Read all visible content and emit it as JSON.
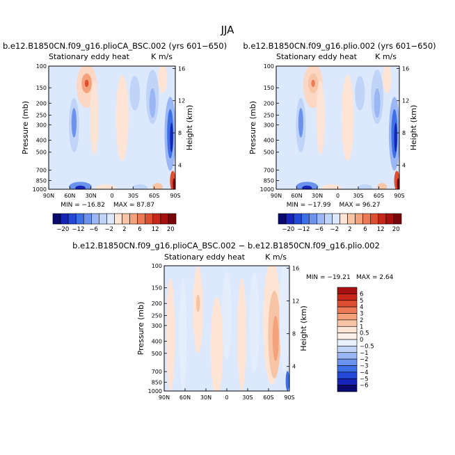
{
  "figure": {
    "season": "JJA"
  },
  "chart_data": [
    {
      "type": "heatmap",
      "title": "b.e12.B1850CN.f09_g16.plioCA_BSC.002 (yrs 601−650)",
      "left_label": "Stationary eddy heat",
      "right_label": "K m/s",
      "ylabel": "Pressure (mb)",
      "y2label": "Height (km)",
      "x_ticks": [
        "90N",
        "60N",
        "30N",
        "0",
        "30S",
        "60S",
        "90S"
      ],
      "y_ticks": [
        "100",
        "150",
        "200",
        "250",
        "300",
        "400",
        "500",
        "700",
        "850",
        "1000"
      ],
      "y2_ticks": [
        "16",
        "12",
        "8",
        "4"
      ],
      "min_text": "MIN = −16.82",
      "max_text": "MAX =  87.87",
      "colorbar_labels": [
        "−20",
        "−12",
        "−6",
        "−2",
        "2",
        "6",
        "12",
        "20"
      ],
      "colorbar_colors": [
        "#0a0a6e",
        "#1624b8",
        "#2449d8",
        "#3d6fe6",
        "#6b93ee",
        "#9ab6f4",
        "#c0d4f8",
        "#dce8fb",
        "#fde4d4",
        "#f8c4a6",
        "#f4a27c",
        "#ec7a56",
        "#de4e30",
        "#c8281a",
        "#a6100e",
        "#78050a"
      ],
      "shapes": [
        {
          "cx": 0.3,
          "cy": 0.16,
          "rx": 0.08,
          "ry": 0.18,
          "c": "#fbd7c4"
        },
        {
          "cx": 0.3,
          "cy": 0.14,
          "rx": 0.04,
          "ry": 0.08,
          "c": "#f4a27c"
        },
        {
          "cx": 0.3,
          "cy": 0.14,
          "rx": 0.015,
          "ry": 0.03,
          "c": "#de4e30"
        },
        {
          "cx": 0.36,
          "cy": 0.42,
          "rx": 0.035,
          "ry": 0.3,
          "c": "#fbe3d6"
        },
        {
          "cx": 0.2,
          "cy": 0.48,
          "rx": 0.04,
          "ry": 0.22,
          "c": "#c0d4f8"
        },
        {
          "cx": 0.2,
          "cy": 0.46,
          "rx": 0.02,
          "ry": 0.12,
          "c": "#6b93ee"
        },
        {
          "cx": 0.12,
          "cy": 0.55,
          "rx": 0.025,
          "ry": 0.3,
          "c": "#dce8fb"
        },
        {
          "cx": 0.58,
          "cy": 0.42,
          "rx": 0.05,
          "ry": 0.35,
          "c": "#fde4d4"
        },
        {
          "cx": 0.68,
          "cy": 0.22,
          "rx": 0.04,
          "ry": 0.14,
          "c": "#c0d4f8"
        },
        {
          "cx": 0.82,
          "cy": 0.25,
          "rx": 0.05,
          "ry": 0.22,
          "c": "#c0d4f8"
        },
        {
          "cx": 0.82,
          "cy": 0.3,
          "rx": 0.025,
          "ry": 0.12,
          "c": "#9ab6f4"
        },
        {
          "cx": 0.9,
          "cy": 0.1,
          "rx": 0.035,
          "ry": 0.12,
          "c": "#fde4d4"
        },
        {
          "cx": 0.96,
          "cy": 0.55,
          "rx": 0.045,
          "ry": 0.3,
          "c": "#9ab6f4"
        },
        {
          "cx": 0.96,
          "cy": 0.55,
          "rx": 0.025,
          "ry": 0.2,
          "c": "#3d6fe6"
        },
        {
          "cx": 0.97,
          "cy": 0.58,
          "rx": 0.012,
          "ry": 0.12,
          "c": "#1624b8"
        },
        {
          "cx": 0.98,
          "cy": 0.93,
          "rx": 0.022,
          "ry": 0.08,
          "c": "#de4e30"
        },
        {
          "cx": 0.99,
          "cy": 0.96,
          "rx": 0.01,
          "ry": 0.05,
          "c": "#78050a"
        },
        {
          "cx": 0.25,
          "cy": 0.98,
          "rx": 0.09,
          "ry": 0.04,
          "c": "#6b93ee"
        },
        {
          "cx": 0.25,
          "cy": 0.99,
          "rx": 0.04,
          "ry": 0.02,
          "c": "#1624b8"
        },
        {
          "cx": 0.45,
          "cy": 0.99,
          "rx": 0.08,
          "ry": 0.03,
          "c": "#fde4d4"
        },
        {
          "cx": 0.72,
          "cy": 0.99,
          "rx": 0.06,
          "ry": 0.03,
          "c": "#c0d4f8"
        },
        {
          "cx": 0.86,
          "cy": 0.98,
          "rx": 0.04,
          "ry": 0.03,
          "c": "#f8c4a6"
        }
      ]
    },
    {
      "type": "heatmap",
      "title": "b.e12.B1850CN.f09_g16.plio.002 (yrs 601−650)",
      "left_label": "Stationary eddy heat",
      "right_label": "K m/s",
      "ylabel": "Pressure (mb)",
      "y2label": "Height (km)",
      "x_ticks": [
        "90N",
        "60N",
        "30N",
        "0",
        "30S",
        "60S",
        "90S"
      ],
      "y_ticks": [
        "100",
        "150",
        "200",
        "250",
        "300",
        "400",
        "500",
        "700",
        "850",
        "1000"
      ],
      "y2_ticks": [
        "16",
        "12",
        "8",
        "4"
      ],
      "min_text": "MIN = −17.99",
      "max_text": "MAX =  96.27",
      "colorbar_labels": [
        "−20",
        "−12",
        "−6",
        "−2",
        "2",
        "6",
        "12",
        "20"
      ],
      "colorbar_colors": [
        "#0a0a6e",
        "#1624b8",
        "#2449d8",
        "#3d6fe6",
        "#6b93ee",
        "#9ab6f4",
        "#c0d4f8",
        "#dce8fb",
        "#fde4d4",
        "#f8c4a6",
        "#f4a27c",
        "#ec7a56",
        "#de4e30",
        "#c8281a",
        "#a6100e",
        "#78050a"
      ],
      "shapes": [
        {
          "cx": 0.3,
          "cy": 0.16,
          "rx": 0.08,
          "ry": 0.18,
          "c": "#fbd7c4"
        },
        {
          "cx": 0.3,
          "cy": 0.14,
          "rx": 0.04,
          "ry": 0.08,
          "c": "#f8c4a6"
        },
        {
          "cx": 0.3,
          "cy": 0.14,
          "rx": 0.015,
          "ry": 0.03,
          "c": "#ec7a56"
        },
        {
          "cx": 0.36,
          "cy": 0.42,
          "rx": 0.035,
          "ry": 0.3,
          "c": "#fbe3d6"
        },
        {
          "cx": 0.2,
          "cy": 0.48,
          "rx": 0.04,
          "ry": 0.22,
          "c": "#c0d4f8"
        },
        {
          "cx": 0.2,
          "cy": 0.46,
          "rx": 0.02,
          "ry": 0.12,
          "c": "#6b93ee"
        },
        {
          "cx": 0.12,
          "cy": 0.55,
          "rx": 0.025,
          "ry": 0.3,
          "c": "#dce8fb"
        },
        {
          "cx": 0.58,
          "cy": 0.42,
          "rx": 0.05,
          "ry": 0.35,
          "c": "#fde4d4"
        },
        {
          "cx": 0.68,
          "cy": 0.22,
          "rx": 0.04,
          "ry": 0.14,
          "c": "#c0d4f8"
        },
        {
          "cx": 0.82,
          "cy": 0.25,
          "rx": 0.05,
          "ry": 0.22,
          "c": "#c0d4f8"
        },
        {
          "cx": 0.82,
          "cy": 0.3,
          "rx": 0.025,
          "ry": 0.12,
          "c": "#9ab6f4"
        },
        {
          "cx": 0.9,
          "cy": 0.1,
          "rx": 0.035,
          "ry": 0.12,
          "c": "#fde4d4"
        },
        {
          "cx": 0.96,
          "cy": 0.55,
          "rx": 0.045,
          "ry": 0.3,
          "c": "#9ab6f4"
        },
        {
          "cx": 0.96,
          "cy": 0.55,
          "rx": 0.025,
          "ry": 0.2,
          "c": "#3d6fe6"
        },
        {
          "cx": 0.97,
          "cy": 0.58,
          "rx": 0.012,
          "ry": 0.12,
          "c": "#1624b8"
        },
        {
          "cx": 0.98,
          "cy": 0.93,
          "rx": 0.022,
          "ry": 0.08,
          "c": "#de4e30"
        },
        {
          "cx": 0.99,
          "cy": 0.96,
          "rx": 0.01,
          "ry": 0.05,
          "c": "#78050a"
        },
        {
          "cx": 0.25,
          "cy": 0.98,
          "rx": 0.09,
          "ry": 0.04,
          "c": "#6b93ee"
        },
        {
          "cx": 0.25,
          "cy": 0.99,
          "rx": 0.04,
          "ry": 0.02,
          "c": "#1624b8"
        },
        {
          "cx": 0.45,
          "cy": 0.99,
          "rx": 0.08,
          "ry": 0.03,
          "c": "#fde4d4"
        },
        {
          "cx": 0.72,
          "cy": 0.99,
          "rx": 0.06,
          "ry": 0.03,
          "c": "#c0d4f8"
        },
        {
          "cx": 0.86,
          "cy": 0.98,
          "rx": 0.04,
          "ry": 0.03,
          "c": "#f8c4a6"
        }
      ]
    },
    {
      "type": "heatmap",
      "title": "b.e12.B1850CN.f09_g16.plioCA_BSC.002 − b.e12.B1850CN.f09_g16.plio.002",
      "left_label": "Stationary eddy heat",
      "right_label": "K m/s",
      "ylabel": "Pressure (mb)",
      "y2label": "Height (km)",
      "x_ticks": [
        "90N",
        "60N",
        "30N",
        "0",
        "30S",
        "60S",
        "90S"
      ],
      "y_ticks": [
        "100",
        "150",
        "200",
        "250",
        "300",
        "400",
        "500",
        "700",
        "850",
        "1000"
      ],
      "y2_ticks": [
        "16",
        "12",
        "8",
        "4"
      ],
      "min_text": "MIN = −19.21",
      "max_text": "MAX =   2.64",
      "colorbar_labels": [
        "6",
        "5",
        "4",
        "3",
        "2",
        "1",
        "0.5",
        "0",
        "−0.5",
        "−1",
        "−2",
        "−3",
        "−4",
        "−5",
        "−6"
      ],
      "colorbar_colors": [
        "#a6100e",
        "#c8281a",
        "#de4e30",
        "#ec7a56",
        "#f4a27c",
        "#f8c4a6",
        "#fde4d4",
        "#fdf1ea",
        "#e8f0fc",
        "#c0d4f8",
        "#9ab6f4",
        "#6b93ee",
        "#3d6fe6",
        "#2449d8",
        "#1624b8",
        "#0a0a6e"
      ],
      "shapes": [
        {
          "cx": 0.05,
          "cy": 0.55,
          "rx": 0.035,
          "ry": 0.45,
          "c": "#fde4d4"
        },
        {
          "cx": 0.15,
          "cy": 0.55,
          "rx": 0.03,
          "ry": 0.45,
          "c": "#e3edfc"
        },
        {
          "cx": 0.27,
          "cy": 0.35,
          "rx": 0.04,
          "ry": 0.35,
          "c": "#fde4d4"
        },
        {
          "cx": 0.27,
          "cy": 0.3,
          "rx": 0.015,
          "ry": 0.07,
          "c": "#f8c4a6"
        },
        {
          "cx": 0.42,
          "cy": 0.65,
          "rx": 0.05,
          "ry": 0.4,
          "c": "#fde4d4"
        },
        {
          "cx": 0.5,
          "cy": 0.4,
          "rx": 0.04,
          "ry": 0.35,
          "c": "#e3edfc"
        },
        {
          "cx": 0.62,
          "cy": 0.55,
          "rx": 0.035,
          "ry": 0.45,
          "c": "#fde4d4"
        },
        {
          "cx": 0.72,
          "cy": 0.45,
          "rx": 0.04,
          "ry": 0.4,
          "c": "#e3edfc"
        },
        {
          "cx": 0.86,
          "cy": 0.45,
          "rx": 0.07,
          "ry": 0.5,
          "c": "#fde4d4"
        },
        {
          "cx": 0.88,
          "cy": 0.55,
          "rx": 0.05,
          "ry": 0.35,
          "c": "#f8c4a6"
        },
        {
          "cx": 0.89,
          "cy": 0.58,
          "rx": 0.025,
          "ry": 0.18,
          "c": "#f4a27c"
        },
        {
          "cx": 0.96,
          "cy": 0.4,
          "rx": 0.04,
          "ry": 0.45,
          "c": "#e3edfc"
        },
        {
          "cx": 0.985,
          "cy": 0.92,
          "rx": 0.015,
          "ry": 0.08,
          "c": "#3d6fe6"
        }
      ]
    }
  ]
}
